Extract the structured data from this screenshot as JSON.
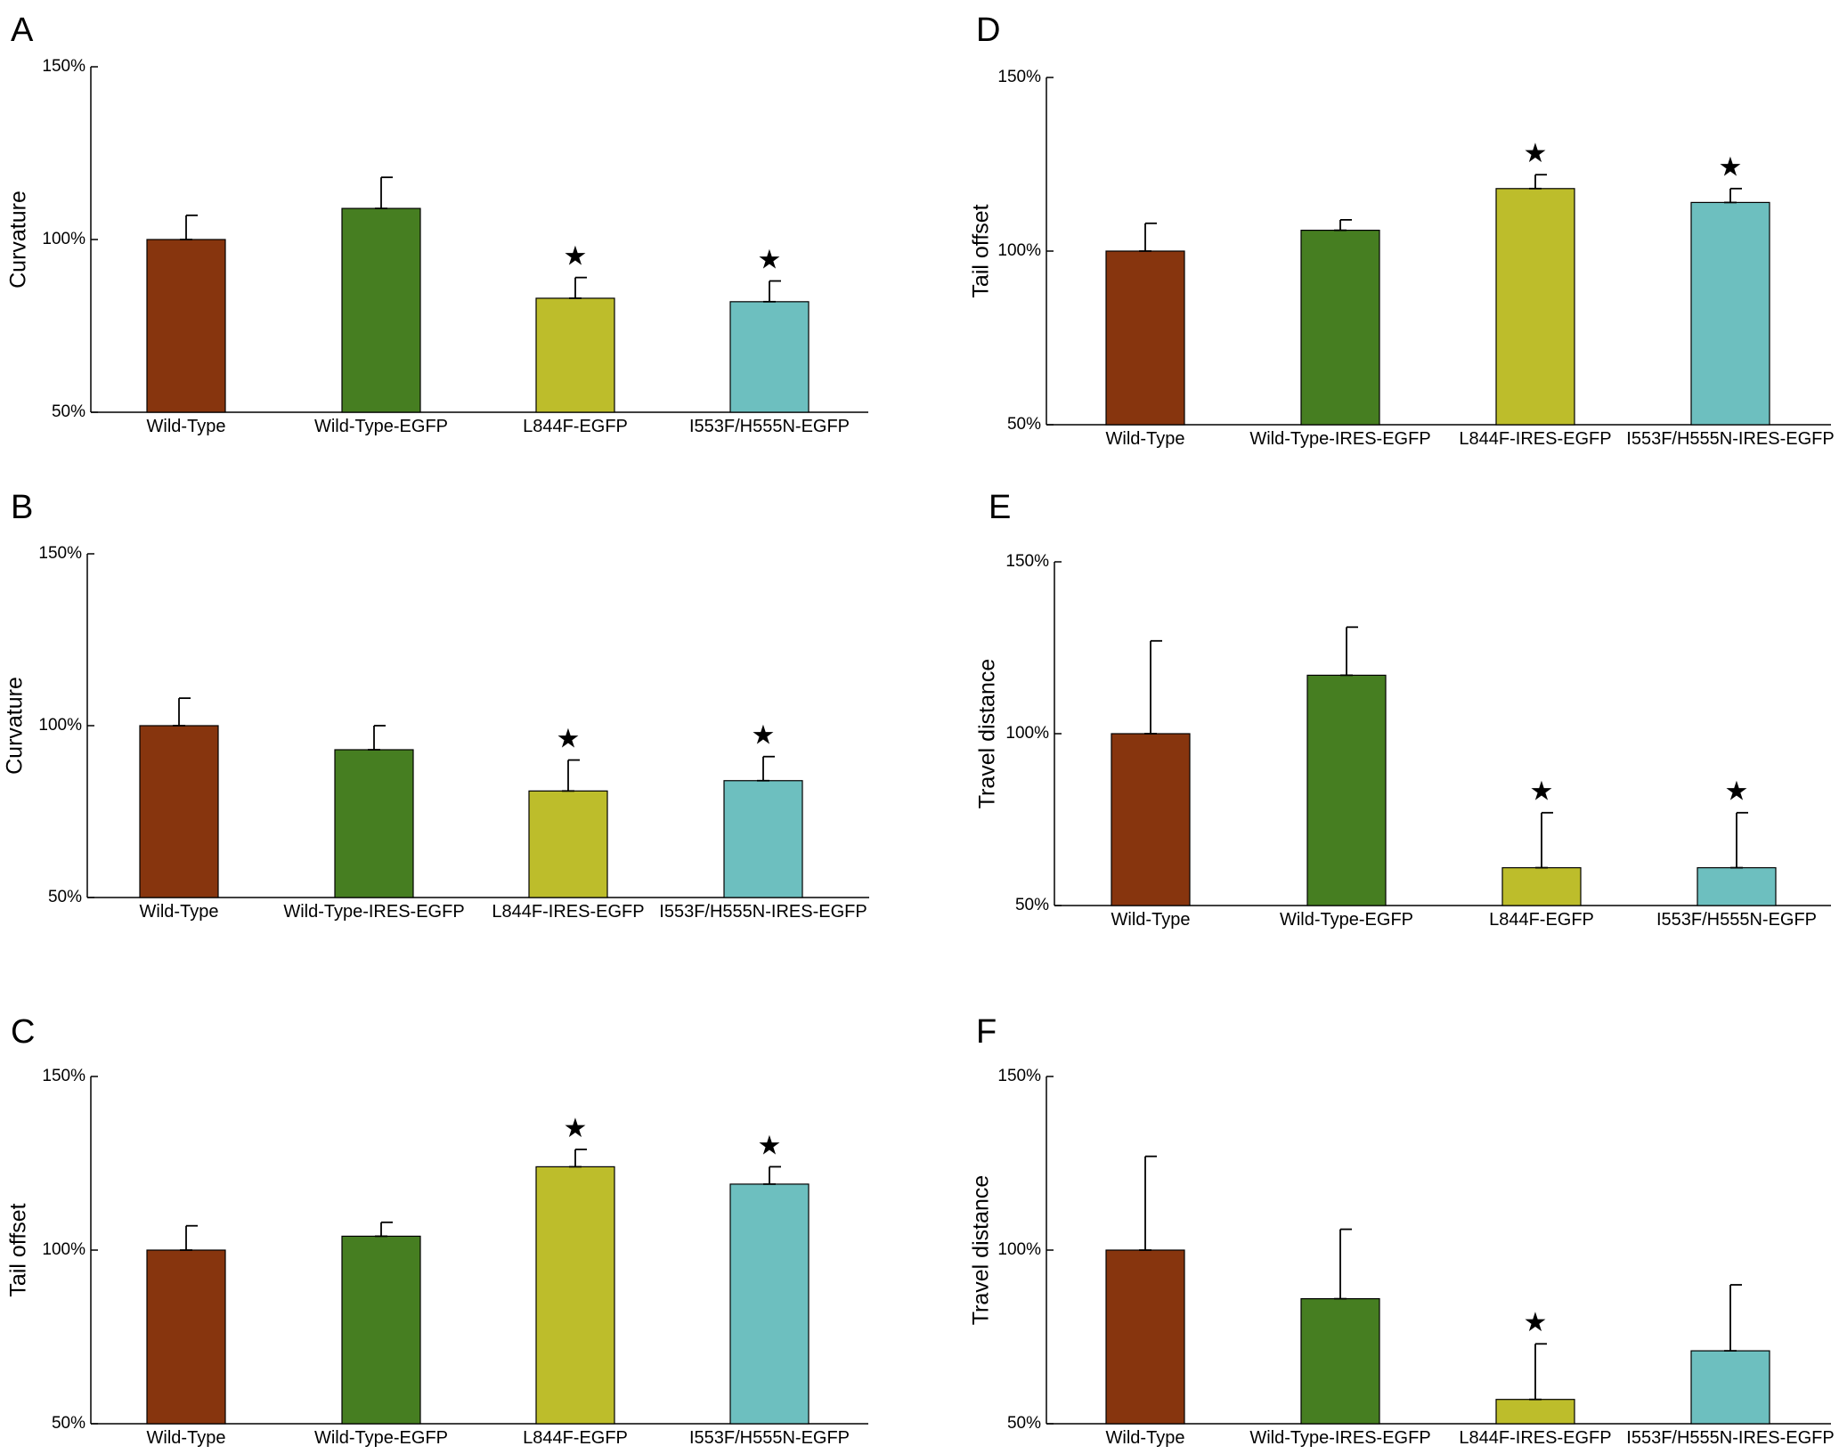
{
  "colors": {
    "Wild-Type": "#87350E",
    "Wild-Type-EGFP": "#467E21",
    "Wild-Type-IRES-EGFP": "#467E21",
    "L844F": "#BDBD2B",
    "I553F": "#6DBFBF",
    "axis": "#000000"
  },
  "chart_data": [
    {
      "panel": "A",
      "type": "bar",
      "ylabel": "Curvature",
      "ylim": [
        50,
        150
      ],
      "yticks": [
        "50%",
        "100%",
        "150%"
      ],
      "categories": [
        "Wild-Type",
        "Wild-Type-EGFP",
        "L844F-EGFP",
        "I553F/H555N-EGFP"
      ],
      "values": [
        100,
        109,
        83,
        82
      ],
      "errors": [
        7,
        9,
        6,
        6
      ],
      "significant": [
        false,
        false,
        true,
        true
      ],
      "annotation": "★"
    },
    {
      "panel": "B",
      "type": "bar",
      "ylabel": "Curvature",
      "ylim": [
        50,
        150
      ],
      "yticks": [
        "50%",
        "100%",
        "150%"
      ],
      "categories": [
        "Wild-Type",
        "Wild-Type-IRES-EGFP",
        "L844F-IRES-EGFP",
        "I553F/H555N-IRES-EGFP"
      ],
      "values": [
        100,
        93,
        81,
        84
      ],
      "errors": [
        8,
        7,
        9,
        7
      ],
      "significant": [
        false,
        false,
        true,
        true
      ],
      "annotation": "★"
    },
    {
      "panel": "C",
      "type": "bar",
      "ylabel": "Tail offset",
      "ylim": [
        50,
        150
      ],
      "yticks": [
        "50%",
        "100%",
        "150%"
      ],
      "categories": [
        "Wild-Type",
        "Wild-Type-EGFP",
        "L844F-EGFP",
        "I553F/H555N-EGFP"
      ],
      "values": [
        100,
        104,
        124,
        119
      ],
      "errors": [
        7,
        4,
        5,
        5
      ],
      "significant": [
        false,
        false,
        true,
        true
      ],
      "annotation": "★"
    },
    {
      "panel": "D",
      "type": "bar",
      "ylabel": "Tail offset",
      "ylim": [
        50,
        150
      ],
      "yticks": [
        "50%",
        "100%",
        "150%"
      ],
      "categories": [
        "Wild-Type",
        "Wild-Type-IRES-EGFP",
        "L844F-IRES-EGFP",
        "I553F/H555N-IRES-EGFP"
      ],
      "values": [
        100,
        106,
        118,
        114
      ],
      "errors": [
        8,
        3,
        4,
        4
      ],
      "significant": [
        false,
        false,
        true,
        true
      ],
      "annotation": "★"
    },
    {
      "panel": "E",
      "type": "bar",
      "ylabel": "Travel distance",
      "ylim": [
        50,
        150
      ],
      "yticks": [
        "50%",
        "100%",
        "150%"
      ],
      "categories": [
        "Wild-Type",
        "Wild-Type-EGFP",
        "L844F-EGFP",
        "I553F/H555N-EGFP"
      ],
      "values": [
        100,
        117,
        61,
        61
      ],
      "errors": [
        27,
        14,
        16,
        16
      ],
      "significant": [
        false,
        false,
        true,
        true
      ],
      "annotation": "★"
    },
    {
      "panel": "F",
      "type": "bar",
      "ylabel": "Travel distance",
      "ylim": [
        50,
        150
      ],
      "yticks": [
        "50%",
        "100%",
        "150%"
      ],
      "categories": [
        "Wild-Type",
        "Wild-Type-IRES-EGFP",
        "L844F-IRES-EGFP",
        "I553F/H555N-IRES-EGFP"
      ],
      "values": [
        100,
        86,
        57,
        71
      ],
      "errors": [
        27,
        20,
        16,
        19
      ],
      "significant": [
        false,
        false,
        true,
        false
      ],
      "annotation": "★"
    }
  ]
}
